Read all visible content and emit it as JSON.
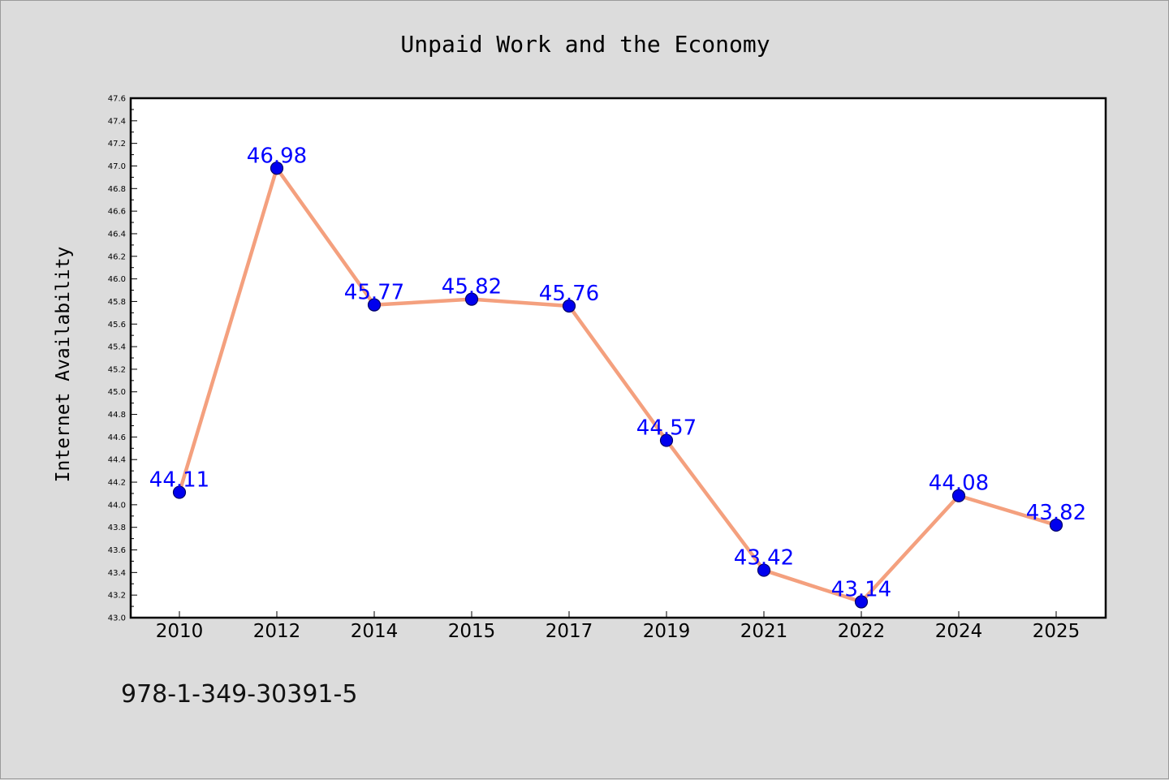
{
  "chart_data": {
    "type": "line",
    "title": "Unpaid Work and the Economy",
    "xlabel": "",
    "ylabel": "Internet Availability",
    "categories": [
      "2010",
      "2012",
      "2014",
      "2015",
      "2017",
      "2019",
      "2021",
      "2022",
      "2024",
      "2025"
    ],
    "values": [
      44.11,
      46.98,
      45.77,
      45.82,
      45.76,
      44.57,
      43.42,
      43.14,
      44.08,
      43.82
    ],
    "data_labels": [
      "44.11",
      "46.98",
      "45.77",
      "45.82",
      "45.76",
      "44.57",
      "43.42",
      "43.14",
      "44.08",
      "43.82"
    ],
    "ylim": [
      43.0,
      47.6
    ],
    "yticks": [
      "43.0",
      "43.2",
      "43.4",
      "43.6",
      "43.8",
      "44.0",
      "44.2",
      "44.4",
      "44.6",
      "44.8",
      "45.0",
      "45.2",
      "45.4",
      "45.6",
      "45.8",
      "46.0",
      "46.2",
      "46.4",
      "46.6",
      "46.8",
      "47.0",
      "47.2",
      "47.4",
      "47.6"
    ],
    "grid": false,
    "legend": "none",
    "colors": {
      "line": "#f4a07e",
      "marker": "#0000ee",
      "marker_edge": "#000066",
      "data_label": "#0000ff",
      "background": "#dcdcdc",
      "plot_area": "#ffffff"
    }
  },
  "annotation": "978-1-349-30391-5"
}
